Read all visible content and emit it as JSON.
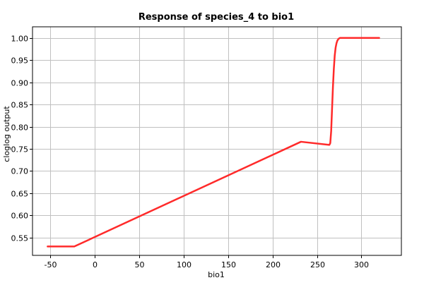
{
  "chart_data": {
    "type": "line",
    "title": "Response of species_4 to bio1",
    "xlabel": "bio1",
    "ylabel": "cloglog output",
    "xlim": [
      -70,
      345
    ],
    "ylim": [
      0.51,
      1.025
    ],
    "x_ticks": [
      -50,
      0,
      50,
      100,
      150,
      200,
      250,
      300
    ],
    "x_tick_labels": [
      "-50",
      "0",
      "50",
      "100",
      "150",
      "200",
      "250",
      "300"
    ],
    "y_ticks": [
      0.55,
      0.6,
      0.65,
      0.7,
      0.75,
      0.8,
      0.85,
      0.9,
      0.95,
      1.0
    ],
    "y_tick_labels": [
      "0.55",
      "0.60",
      "0.65",
      "0.70",
      "0.75",
      "0.80",
      "0.85",
      "0.90",
      "0.95",
      "1.00"
    ],
    "grid": true,
    "series": [
      {
        "color": "#ff2a2a",
        "x": [
          -53,
          -23,
          232,
          264,
          265,
          266,
          267,
          268,
          269,
          270,
          271,
          272,
          273,
          274,
          275,
          276,
          278,
          282,
          320
        ],
        "y": [
          0.53,
          0.53,
          0.766,
          0.759,
          0.763,
          0.79,
          0.84,
          0.89,
          0.93,
          0.96,
          0.978,
          0.988,
          0.994,
          0.997,
          0.999,
          1.0,
          1.0,
          1.0,
          1.0
        ]
      }
    ]
  }
}
